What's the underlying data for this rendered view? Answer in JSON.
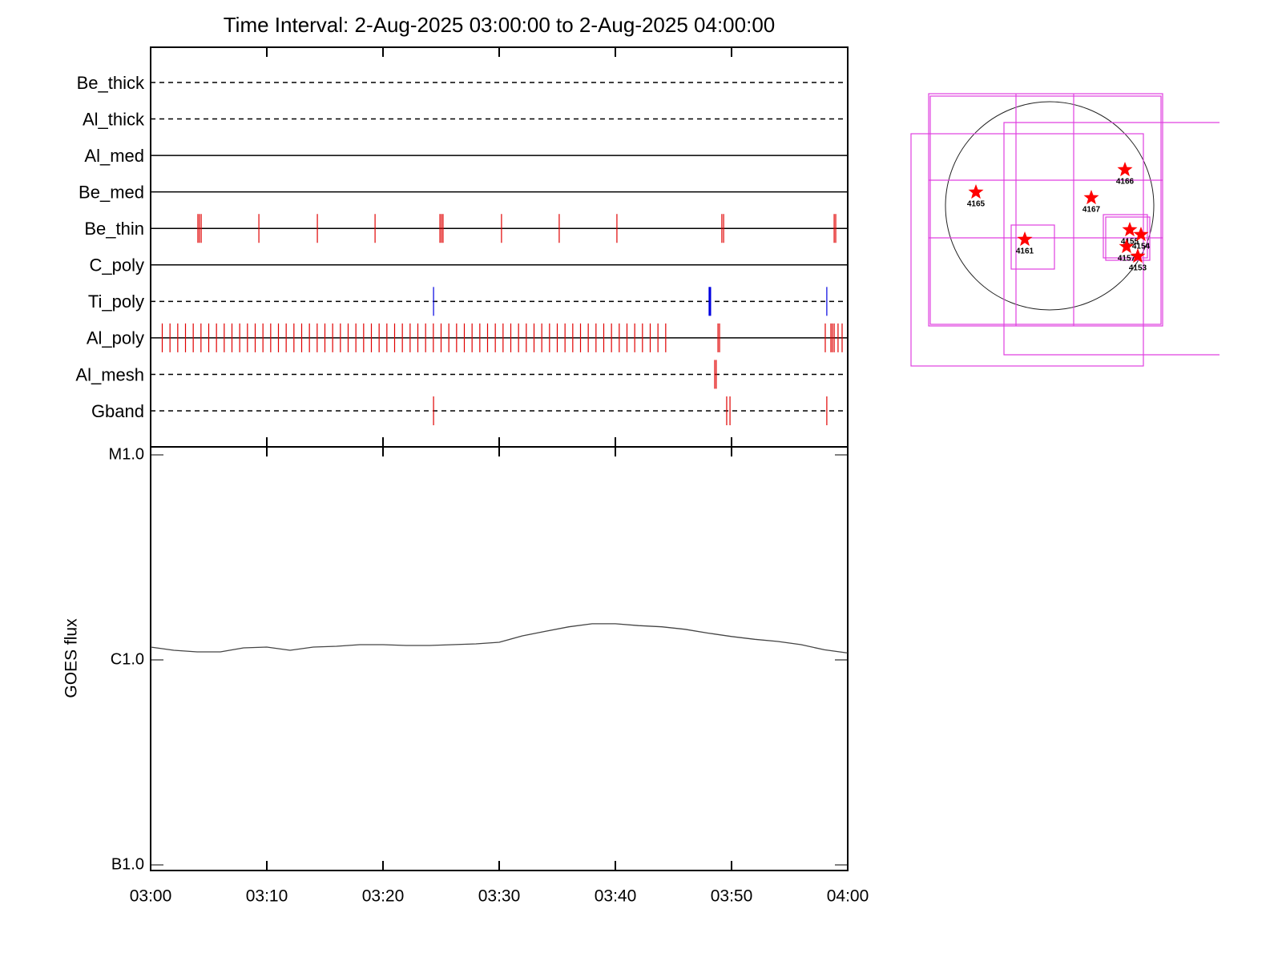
{
  "title": "Time Interval:  2-Aug-2025 03:00:00 to  2-Aug-2025 04:00:00",
  "filters": {
    "rows": [
      {
        "name": "Be_thick",
        "style": "dashed",
        "color": "#e00000",
        "events": []
      },
      {
        "name": "Al_thick",
        "style": "dashed",
        "color": "#e00000",
        "events": []
      },
      {
        "name": "Al_med",
        "style": "solid",
        "color": "#e00000",
        "events": []
      },
      {
        "name": "Be_med",
        "style": "solid",
        "color": "#e00000",
        "events": []
      },
      {
        "name": "Be_thin",
        "style": "solid",
        "color": "#e00000",
        "events": [
          "03:04:04",
          "03:04:12",
          "03:04:21",
          "03:09:19",
          "03:14:21",
          "03:19:19",
          "03:24:54",
          "03:25:02",
          "03:25:10",
          "03:30:12",
          "03:35:10",
          "03:40:08",
          "03:49:10",
          "03:49:19",
          "03:58:50",
          "03:58:58"
        ]
      },
      {
        "name": "C_poly",
        "style": "solid",
        "color": "#e00000",
        "events": []
      },
      {
        "name": "Ti_poly",
        "style": "dashed",
        "color": "#0000e0",
        "events": [
          "03:24:21",
          "03:48:04",
          "03:48:08",
          "03:48:12",
          "03:58:12"
        ]
      },
      {
        "name": "Al_poly",
        "style": "solid",
        "color": "#e00000",
        "events": [
          "03:01:00",
          "03:01:40",
          "03:02:20",
          "03:03:00",
          "03:03:40",
          "03:04:20",
          "03:05:00",
          "03:05:40",
          "03:06:20",
          "03:07:00",
          "03:07:40",
          "03:08:20",
          "03:09:00",
          "03:09:40",
          "03:10:20",
          "03:11:00",
          "03:11:40",
          "03:12:20",
          "03:13:00",
          "03:13:40",
          "03:14:20",
          "03:15:00",
          "03:15:40",
          "03:16:20",
          "03:17:00",
          "03:17:40",
          "03:18:20",
          "03:19:00",
          "03:19:40",
          "03:20:20",
          "03:21:00",
          "03:21:40",
          "03:22:20",
          "03:23:00",
          "03:23:40",
          "03:24:20",
          "03:25:00",
          "03:25:40",
          "03:26:20",
          "03:27:00",
          "03:27:40",
          "03:28:20",
          "03:29:00",
          "03:29:40",
          "03:30:20",
          "03:31:00",
          "03:31:40",
          "03:32:20",
          "03:33:00",
          "03:33:40",
          "03:34:20",
          "03:35:00",
          "03:35:40",
          "03:36:20",
          "03:37:00",
          "03:37:40",
          "03:38:20",
          "03:39:00",
          "03:39:40",
          "03:40:20",
          "03:41:00",
          "03:41:40",
          "03:42:20",
          "03:43:00",
          "03:43:40",
          "03:44:20",
          "03:48:50",
          "03:48:58",
          "03:58:04",
          "03:58:33",
          "03:58:41",
          "03:58:50",
          "03:59:10",
          "03:59:31"
        ]
      },
      {
        "name": "Al_mesh",
        "style": "dashed",
        "color": "#e00000",
        "events": [
          "03:48:33",
          "03:48:41"
        ]
      },
      {
        "name": "Gband",
        "style": "dashed",
        "color": "#e00000",
        "events": [
          "03:24:21",
          "03:49:35",
          "03:49:52",
          "03:58:12"
        ]
      }
    ]
  },
  "chart_data": {
    "type": "line",
    "ylabel": "GOES flux",
    "color": "#444444",
    "x": [
      "03:00",
      "03:02",
      "03:04",
      "03:06",
      "03:08",
      "03:10",
      "03:12",
      "03:14",
      "03:16",
      "03:18",
      "03:20",
      "03:22",
      "03:24",
      "03:26",
      "03:28",
      "03:30",
      "03:32",
      "03:34",
      "03:36",
      "03:38",
      "03:40",
      "03:42",
      "03:44",
      "03:46",
      "03:48",
      "03:50",
      "03:52",
      "03:54",
      "03:56",
      "03:58",
      "04:00"
    ],
    "values": [
      1.155e-06,
      1.114e-06,
      1.094e-06,
      1.094e-06,
      1.144e-06,
      1.155e-06,
      1.114e-06,
      1.155e-06,
      1.165e-06,
      1.186e-06,
      1.186e-06,
      1.176e-06,
      1.176e-06,
      1.186e-06,
      1.197e-06,
      1.219e-06,
      1.31e-06,
      1.38e-06,
      1.45e-06,
      1.5e-06,
      1.5e-06,
      1.47e-06,
      1.45e-06,
      1.41e-06,
      1.35e-06,
      1.3e-06,
      1.26e-06,
      1.23e-06,
      1.186e-06,
      1.12e-06,
      1.08e-06
    ],
    "xlim": [
      "03:00",
      "04:00"
    ],
    "xticks": [
      "03:00",
      "03:10",
      "03:20",
      "03:30",
      "03:40",
      "03:50",
      "04:00"
    ],
    "ylim": [
      1e-07,
      1e-05
    ],
    "log_scale": true,
    "yticks": [
      {
        "value": 1e-05,
        "label": "M1.0"
      },
      {
        "value": 1e-06,
        "label": "C1.0"
      },
      {
        "value": 1e-07,
        "label": "B1.0"
      }
    ]
  },
  "map": {
    "regions": [
      "4165",
      "4166",
      "4167",
      "4161",
      "4155",
      "4154",
      "4157",
      "4153"
    ]
  }
}
